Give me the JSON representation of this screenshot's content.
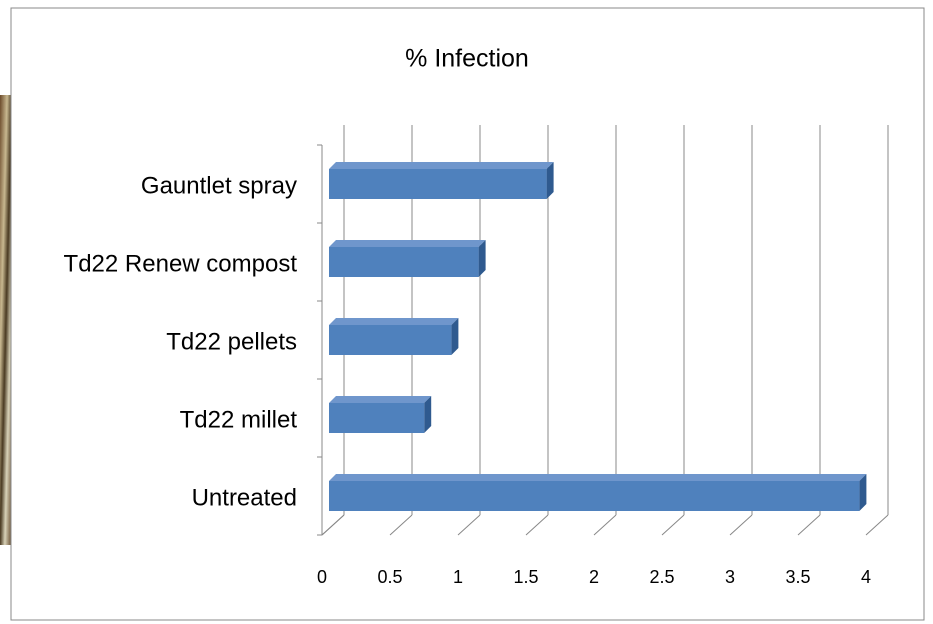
{
  "chart_data": {
    "type": "bar",
    "orientation": "horizontal",
    "title": "% Infection",
    "categories": [
      "Gauntlet spray",
      "Td22 Renew compost",
      "Td22 pellets",
      "Td22 millet",
      "Untreated"
    ],
    "values": [
      1.6,
      1.1,
      0.9,
      0.7,
      3.9
    ],
    "color": "#4f81bd",
    "xlim": [
      0,
      4
    ],
    "xticks": [
      0,
      0.5,
      1,
      1.5,
      2,
      2.5,
      3,
      3.5,
      4
    ],
    "grid": true
  }
}
